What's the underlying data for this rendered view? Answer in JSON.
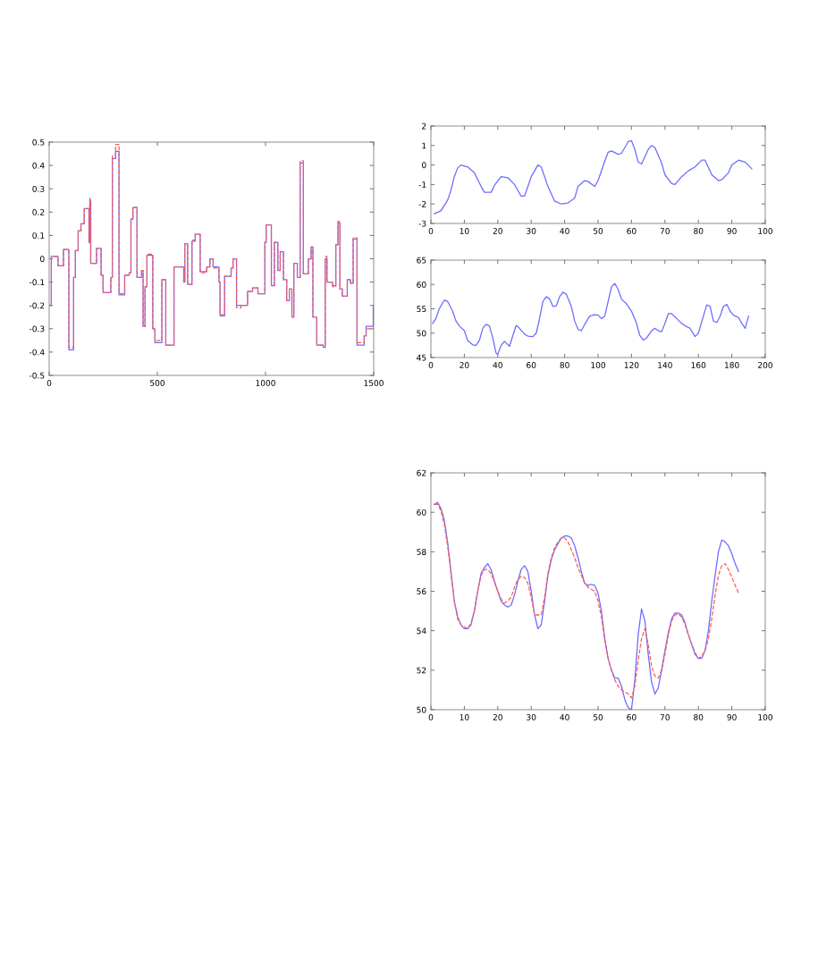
{
  "chart_data": [
    {
      "type": "step",
      "xlim": [
        0,
        1500
      ],
      "ylim": [
        -0.5,
        0.5
      ],
      "xticks": [
        0,
        500,
        1000,
        1500
      ],
      "yticks": [
        -0.5,
        -0.4,
        -0.3,
        -0.2,
        -0.1,
        0,
        0.1,
        0.2,
        0.3,
        0.4,
        0.5
      ],
      "grid": false,
      "marker": "none",
      "series": [
        {
          "color": "#6a6aff",
          "line_style": "solid",
          "x": [
            0,
            10,
            41,
            66,
            91,
            113,
            121,
            134,
            147,
            162,
            184,
            188,
            192,
            219,
            240,
            249,
            285,
            292,
            307,
            323,
            349,
            370,
            378,
            387,
            406,
            427,
            434,
            443,
            452,
            479,
            489,
            521,
            539,
            577,
            622,
            627,
            640,
            660,
            675,
            698,
            728,
            743,
            758,
            785,
            790,
            811,
            841,
            850,
            866,
            887,
            917,
            940,
            965,
            997,
            1003,
            1027,
            1041,
            1057,
            1068,
            1083,
            1098,
            1110,
            1122,
            1131,
            1147,
            1160,
            1175,
            1198,
            1211,
            1219,
            1237,
            1267,
            1276,
            1284,
            1310,
            1325,
            1335,
            1344,
            1355,
            1378,
            1393,
            1405,
            1423,
            1456,
            1465,
            1498
          ],
          "values": [
            -0.2,
            0.01,
            -0.03,
            0.04,
            -0.39,
            -0.08,
            0.035,
            0.12,
            0.15,
            0.215,
            0.07,
            0.25,
            -0.02,
            0.045,
            -0.07,
            -0.145,
            -0.08,
            0.43,
            0.46,
            -0.155,
            -0.07,
            -0.06,
            0.17,
            0.22,
            -0.08,
            -0.05,
            -0.29,
            -0.12,
            0.015,
            -0.3,
            -0.36,
            -0.09,
            -0.37,
            -0.035,
            -0.1,
            0.065,
            -0.11,
            0.075,
            0.105,
            -0.055,
            -0.035,
            0.0,
            -0.035,
            -0.1,
            -0.245,
            -0.075,
            -0.04,
            0.0,
            -0.2,
            -0.2,
            -0.14,
            -0.125,
            -0.15,
            0.07,
            0.145,
            -0.115,
            0.07,
            -0.05,
            0.03,
            -0.09,
            -0.18,
            -0.13,
            -0.25,
            -0.02,
            -0.08,
            0.41,
            -0.065,
            0.0,
            0.05,
            -0.25,
            -0.37,
            -0.38,
            0.0,
            -0.1,
            -0.115,
            0.06,
            0.155,
            -0.13,
            -0.16,
            -0.09,
            -0.105,
            0.085,
            -0.37,
            -0.33,
            -0.29,
            -0.2
          ]
        },
        {
          "color": "#ff5a5a",
          "line_style": "dashed",
          "x": [
            0,
            10,
            41,
            66,
            91,
            113,
            121,
            134,
            147,
            162,
            184,
            188,
            192,
            219,
            240,
            249,
            285,
            292,
            307,
            323,
            349,
            370,
            378,
            387,
            406,
            427,
            434,
            443,
            452,
            479,
            489,
            521,
            539,
            577,
            622,
            627,
            640,
            660,
            675,
            698,
            728,
            743,
            758,
            785,
            790,
            811,
            841,
            850,
            866,
            887,
            917,
            940,
            965,
            997,
            1003,
            1027,
            1041,
            1057,
            1068,
            1083,
            1098,
            1110,
            1122,
            1131,
            1147,
            1160,
            1175,
            1198,
            1211,
            1219,
            1237,
            1267,
            1276,
            1284,
            1310,
            1325,
            1335,
            1344,
            1355,
            1378,
            1393,
            1405,
            1423,
            1456,
            1465,
            1498
          ],
          "values": [
            -0.2,
            0.01,
            -0.03,
            0.04,
            -0.38,
            -0.08,
            0.035,
            0.12,
            0.15,
            0.215,
            0.07,
            0.26,
            -0.02,
            0.045,
            -0.07,
            -0.145,
            -0.08,
            0.44,
            0.49,
            -0.15,
            -0.07,
            -0.06,
            0.17,
            0.22,
            -0.08,
            -0.05,
            -0.29,
            -0.12,
            0.02,
            -0.3,
            -0.35,
            -0.09,
            -0.37,
            -0.035,
            -0.1,
            0.065,
            -0.11,
            0.08,
            0.105,
            -0.06,
            -0.035,
            0.0,
            -0.04,
            -0.1,
            -0.24,
            -0.075,
            -0.04,
            0.0,
            -0.21,
            -0.2,
            -0.14,
            -0.125,
            -0.15,
            0.07,
            0.145,
            -0.115,
            0.07,
            -0.05,
            0.03,
            -0.09,
            -0.18,
            -0.13,
            -0.25,
            -0.02,
            -0.08,
            0.42,
            -0.065,
            0.0,
            0.05,
            -0.25,
            -0.37,
            -0.37,
            0.01,
            -0.1,
            -0.12,
            0.06,
            0.16,
            -0.13,
            -0.16,
            -0.09,
            -0.105,
            0.09,
            -0.36,
            -0.33,
            -0.3,
            -0.3
          ]
        }
      ]
    },
    {
      "type": "line",
      "xlim": [
        0,
        100
      ],
      "ylim": [
        -3,
        2
      ],
      "xticks": [
        0,
        10,
        20,
        30,
        40,
        50,
        60,
        70,
        80,
        90,
        100
      ],
      "yticks": [
        -3,
        -2,
        -1,
        0,
        1,
        2
      ],
      "grid": false,
      "marker": "none",
      "series": [
        {
          "color": "#6a6aff",
          "line_style": "solid",
          "x": [
            1,
            3,
            5,
            6,
            7,
            8,
            9,
            11,
            13,
            15,
            16,
            18,
            19,
            21,
            23,
            25,
            27,
            28,
            30,
            32,
            33,
            35,
            37,
            39,
            41,
            43,
            44,
            46,
            47,
            49,
            50,
            52,
            53,
            54,
            56,
            57,
            59,
            60,
            61,
            62,
            63,
            65,
            66,
            67,
            69,
            70,
            72,
            73,
            75,
            77,
            79,
            81,
            82,
            84,
            86,
            87,
            89,
            90,
            92,
            94,
            96
          ],
          "values": [
            -2.5,
            -2.35,
            -1.8,
            -1.3,
            -0.6,
            -0.15,
            0,
            -0.1,
            -0.4,
            -1.1,
            -1.4,
            -1.4,
            -1.05,
            -0.6,
            -0.65,
            -1.0,
            -1.6,
            -1.6,
            -0.6,
            0,
            -0.1,
            -1.1,
            -1.85,
            -2.0,
            -1.95,
            -1.7,
            -1.1,
            -0.8,
            -0.85,
            -1.1,
            -0.8,
            0.2,
            0.65,
            0.72,
            0.55,
            0.6,
            1.2,
            1.25,
            0.8,
            0.15,
            0.05,
            0.8,
            1.0,
            0.9,
            0.1,
            -0.5,
            -0.95,
            -1.0,
            -0.6,
            -0.3,
            -0.1,
            0.25,
            0.25,
            -0.5,
            -0.8,
            -0.75,
            -0.4,
            0,
            0.25,
            0.15,
            -0.2
          ]
        }
      ]
    },
    {
      "type": "line",
      "xlim": [
        0,
        200
      ],
      "ylim": [
        45,
        65
      ],
      "xticks": [
        0,
        20,
        40,
        60,
        80,
        100,
        120,
        140,
        160,
        180,
        200
      ],
      "yticks": [
        45,
        50,
        55,
        60,
        65
      ],
      "grid": false,
      "marker": "none",
      "series": [
        {
          "color": "#6a6aff",
          "line_style": "solid",
          "x": [
            1,
            3,
            5,
            8,
            10,
            13,
            15,
            17,
            20,
            22,
            25,
            27,
            29,
            31,
            33,
            35,
            37,
            39,
            40,
            42,
            44,
            45,
            47,
            49,
            51,
            53,
            56,
            58,
            61,
            63,
            65,
            67,
            69,
            71,
            73,
            75,
            77,
            79,
            81,
            84,
            86,
            88,
            90,
            92,
            95,
            98,
            100,
            102,
            104,
            106,
            108,
            110,
            112,
            114,
            117,
            120,
            123,
            125,
            127,
            129,
            132,
            134,
            136,
            138,
            140,
            142,
            144,
            147,
            150,
            152,
            155,
            158,
            160,
            163,
            165,
            167,
            169,
            171,
            173,
            175,
            177,
            179,
            181,
            184,
            186,
            188,
            190
          ],
          "values": [
            52,
            53,
            55,
            56.8,
            56.5,
            54.5,
            52.5,
            51.5,
            50.5,
            48.5,
            47.6,
            47.5,
            48.5,
            51,
            51.8,
            51.5,
            49,
            45.9,
            45.7,
            47.5,
            48.3,
            48,
            47.3,
            49.5,
            51.6,
            51,
            49.8,
            49.4,
            49.3,
            50,
            53,
            56.5,
            57.5,
            57,
            55.5,
            55.6,
            57.5,
            58.4,
            58,
            55.5,
            52.5,
            50.8,
            50.5,
            51.8,
            53.5,
            53.8,
            53.7,
            53,
            53.5,
            56.5,
            59.5,
            60.2,
            59,
            57,
            56,
            54.5,
            52,
            49.5,
            48.6,
            49,
            50.5,
            51,
            50.5,
            50.3,
            52,
            54,
            54,
            53,
            52,
            51.5,
            51,
            49.3,
            50,
            53.5,
            55.8,
            55.5,
            52.5,
            52.2,
            53.5,
            55.5,
            55.9,
            54.5,
            53.7,
            53.2,
            52,
            51,
            53.5
          ]
        }
      ]
    },
    {
      "type": "line",
      "xlim": [
        0,
        100
      ],
      "ylim": [
        50,
        62
      ],
      "xticks": [
        0,
        10,
        20,
        30,
        40,
        50,
        60,
        70,
        80,
        90,
        100
      ],
      "yticks": [
        50,
        52,
        54,
        56,
        58,
        60,
        62
      ],
      "grid": false,
      "marker": "none",
      "series": [
        {
          "color": "#6a6aff",
          "line_style": "solid",
          "x": [
            1,
            2,
            3,
            4,
            5,
            6,
            7,
            8,
            9,
            10,
            11,
            12,
            13,
            14,
            15,
            16,
            17,
            18,
            19,
            20,
            21,
            22,
            23,
            24,
            25,
            26,
            27,
            28,
            29,
            30,
            31,
            32,
            33,
            34,
            35,
            36,
            37,
            38,
            39,
            40,
            41,
            42,
            43,
            44,
            45,
            46,
            47,
            48,
            49,
            50,
            51,
            52,
            53,
            54,
            55,
            56,
            57,
            58,
            59,
            60,
            61,
            62,
            63,
            64,
            65,
            66,
            67,
            68,
            69,
            70,
            71,
            72,
            73,
            74,
            75,
            76,
            77,
            78,
            79,
            80,
            81,
            82,
            83,
            84,
            85,
            86,
            87,
            88,
            89,
            90,
            91,
            92
          ],
          "values": [
            60.4,
            60.5,
            60.2,
            59.6,
            58.5,
            57,
            55.5,
            54.7,
            54.3,
            54.1,
            54.1,
            54.3,
            55,
            56,
            56.9,
            57.2,
            57.4,
            57.1,
            56.5,
            56,
            55.5,
            55.3,
            55.2,
            55.3,
            55.8,
            56.5,
            57.1,
            57.3,
            57,
            56,
            54.8,
            54.1,
            54.3,
            55.5,
            56.8,
            57.6,
            58.1,
            58.4,
            58.7,
            58.8,
            58.8,
            58.7,
            58.3,
            57.7,
            57,
            56.4,
            56.3,
            56.35,
            56.3,
            55.9,
            55,
            53.6,
            52.6,
            52,
            51.6,
            51.6,
            51.2,
            50.5,
            50.1,
            50.0,
            51.5,
            53.8,
            55.1,
            54.5,
            52.8,
            51.4,
            50.8,
            51.1,
            52,
            53,
            53.9,
            54.6,
            54.9,
            54.9,
            54.8,
            54.4,
            53.8,
            53.3,
            52.8,
            52.6,
            52.6,
            53,
            54,
            55.5,
            56.8,
            58,
            58.6,
            58.5,
            58.3,
            57.9,
            57.4,
            57
          ]
        },
        {
          "color": "#ff5a5a",
          "line_style": "dashed",
          "x": [
            1,
            2,
            3,
            4,
            5,
            6,
            7,
            8,
            9,
            10,
            11,
            12,
            13,
            14,
            15,
            16,
            17,
            18,
            19,
            20,
            21,
            22,
            23,
            24,
            25,
            26,
            27,
            28,
            29,
            30,
            31,
            32,
            33,
            34,
            35,
            36,
            37,
            38,
            39,
            40,
            41,
            42,
            43,
            44,
            45,
            46,
            47,
            48,
            49,
            50,
            51,
            52,
            53,
            54,
            55,
            56,
            57,
            58,
            59,
            60,
            61,
            62,
            63,
            64,
            65,
            66,
            67,
            68,
            69,
            70,
            71,
            72,
            73,
            74,
            75,
            76,
            77,
            78,
            79,
            80,
            81,
            82,
            83,
            84,
            85,
            86,
            87,
            88,
            89,
            90,
            91,
            92
          ],
          "values": [
            60.4,
            60.4,
            60.1,
            59.4,
            58.3,
            56.9,
            55.5,
            54.6,
            54.3,
            54.2,
            54.1,
            54.4,
            55,
            56,
            56.8,
            57.1,
            57.1,
            56.9,
            56.5,
            56,
            55.6,
            55.4,
            55.5,
            55.7,
            56.2,
            56.6,
            56.75,
            56.7,
            56.4,
            55.7,
            54.8,
            54.8,
            54.8,
            55.7,
            56.9,
            57.7,
            58.2,
            58.5,
            58.7,
            58.7,
            58.5,
            58.1,
            57.7,
            57.2,
            56.8,
            56.4,
            56.2,
            56.1,
            56,
            55.5,
            54.7,
            53.5,
            52.6,
            52,
            51.5,
            51.2,
            51,
            50.9,
            50.8,
            50.6,
            51.2,
            52.5,
            53.6,
            54.1,
            53.3,
            52.2,
            51.7,
            51.6,
            52,
            52.8,
            53.8,
            54.5,
            54.8,
            54.85,
            54.7,
            54.3,
            53.8,
            53.3,
            52.9,
            52.6,
            52.7,
            53,
            53.6,
            54.6,
            55.8,
            56.8,
            57.3,
            57.4,
            57.1,
            56.7,
            56.3,
            55.9
          ]
        }
      ]
    }
  ]
}
